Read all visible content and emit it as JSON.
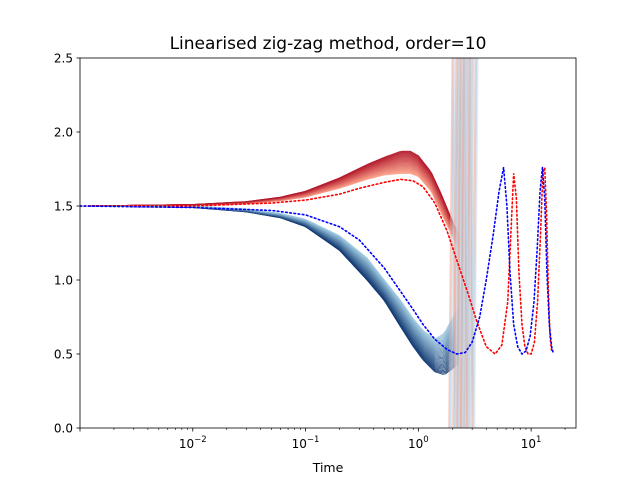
{
  "chart_data": {
    "type": "line",
    "title": "Linearised zig-zag method, order=10",
    "xlabel": "Time",
    "ylabel": "",
    "xscale": "log",
    "xlim": [
      0.001,
      25
    ],
    "ylim": [
      0.0,
      2.5
    ],
    "grid": false,
    "legend": "none",
    "x_ticks": [
      {
        "value": 0.01,
        "base": "10",
        "exp": "−2"
      },
      {
        "value": 0.1,
        "base": "10",
        "exp": "−1"
      },
      {
        "value": 1,
        "base": "10",
        "exp": "0"
      },
      {
        "value": 10,
        "base": "10",
        "exp": "1"
      }
    ],
    "y_ticks": [
      {
        "value": 0.0,
        "label": "0.0"
      },
      {
        "value": 0.5,
        "label": "0.5"
      },
      {
        "value": 1.0,
        "label": "1.0"
      },
      {
        "value": 1.5,
        "label": "1.5"
      },
      {
        "value": 2.0,
        "label": "2.0"
      },
      {
        "value": 2.5,
        "label": "2.5"
      }
    ],
    "colors": {
      "ensemble_red_dark": "#b2182b",
      "ensemble_red_light": "#fca28a",
      "ensemble_blue_dark": "#08306b",
      "ensemble_blue_light": "#9ecae1",
      "diverging_tail": "#d9dde8",
      "reference_red": "#ff0000",
      "reference_blue": "#0000ff"
    },
    "ensemble_upper": {
      "x": [
        0.001,
        0.01,
        0.03,
        0.06,
        0.1,
        0.2,
        0.35,
        0.5,
        0.7,
        0.85,
        1.0,
        1.3,
        1.6,
        2.0,
        2.3
      ],
      "y_low": [
        1.5,
        1.505,
        1.515,
        1.535,
        1.56,
        1.62,
        1.68,
        1.71,
        1.72,
        1.72,
        1.7,
        1.6,
        1.45,
        1.3,
        1.2
      ],
      "y_high": [
        1.5,
        1.51,
        1.53,
        1.56,
        1.6,
        1.69,
        1.78,
        1.83,
        1.87,
        1.87,
        1.84,
        1.73,
        1.58,
        1.4,
        1.3
      ]
    },
    "ensemble_lower": {
      "x": [
        0.001,
        0.01,
        0.03,
        0.06,
        0.1,
        0.2,
        0.35,
        0.5,
        0.7,
        0.9,
        1.1,
        1.4,
        1.7,
        2.0,
        2.3
      ],
      "y_low": [
        1.5,
        1.49,
        1.46,
        1.42,
        1.36,
        1.2,
        1.0,
        0.86,
        0.68,
        0.55,
        0.46,
        0.38,
        0.36,
        0.4,
        0.44
      ],
      "y_high": [
        1.5,
        1.5,
        1.48,
        1.45,
        1.41,
        1.3,
        1.15,
        1.0,
        0.86,
        0.74,
        0.66,
        0.6,
        0.64,
        0.74,
        0.82
      ]
    },
    "diverging_tail": {
      "x": [
        2.2,
        2.35,
        2.5,
        2.65,
        2.8,
        3.0
      ],
      "y": [
        0.0,
        2.5,
        0.0,
        2.5,
        0.0,
        2.5
      ]
    },
    "series": [
      {
        "style": "dotted",
        "color": "#ff0000",
        "x": [
          0.001,
          0.01,
          0.05,
          0.1,
          0.2,
          0.3,
          0.5,
          0.7,
          0.9,
          1.1,
          1.4,
          1.8,
          2.2,
          2.7,
          3.3,
          4.0,
          4.8,
          5.5,
          6.2,
          6.6,
          7.0,
          7.4,
          7.8,
          8.3,
          8.8,
          9.4,
          10.0,
          10.7,
          11.4,
          12.1,
          12.7,
          13.2,
          13.7,
          14.2,
          14.7,
          15.2
        ],
        "y": [
          1.5,
          1.5,
          1.52,
          1.54,
          1.58,
          1.62,
          1.66,
          1.68,
          1.67,
          1.63,
          1.52,
          1.33,
          1.13,
          0.93,
          0.72,
          0.55,
          0.5,
          0.56,
          0.85,
          1.3,
          1.72,
          1.55,
          1.05,
          0.7,
          0.55,
          0.5,
          0.5,
          0.58,
          0.85,
          1.3,
          1.72,
          1.76,
          1.45,
          0.95,
          0.62,
          0.52
        ]
      },
      {
        "style": "dotted",
        "color": "#0000ff",
        "x": [
          0.001,
          0.01,
          0.05,
          0.1,
          0.2,
          0.3,
          0.5,
          0.7,
          0.9,
          1.1,
          1.4,
          1.8,
          2.2,
          2.6,
          3.0,
          3.5,
          4.0,
          4.6,
          5.2,
          5.7,
          6.1,
          6.5,
          7.0,
          7.6,
          8.3,
          9.0,
          9.8,
          10.6,
          11.3,
          12.0,
          12.6,
          13.2,
          13.8,
          14.5,
          15.2,
          15.8
        ],
        "y": [
          1.5,
          1.49,
          1.47,
          1.44,
          1.36,
          1.27,
          1.08,
          0.92,
          0.8,
          0.7,
          0.6,
          0.53,
          0.5,
          0.51,
          0.58,
          0.75,
          1.0,
          1.3,
          1.6,
          1.76,
          1.5,
          1.05,
          0.7,
          0.55,
          0.5,
          0.52,
          0.62,
          0.85,
          1.2,
          1.6,
          1.76,
          1.55,
          1.05,
          0.7,
          0.55,
          0.5
        ]
      }
    ]
  }
}
